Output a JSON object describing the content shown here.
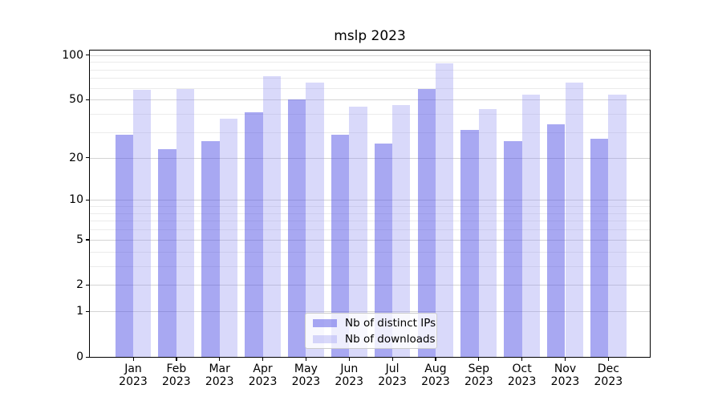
{
  "chart_data": {
    "type": "bar",
    "title": "mslp 2023",
    "year": "2023",
    "categories": [
      "Jan",
      "Feb",
      "Mar",
      "Apr",
      "May",
      "Jun",
      "Jul",
      "Aug",
      "Sep",
      "Oct",
      "Nov",
      "Dec"
    ],
    "series": [
      {
        "name": "Nb of distinct IPs",
        "fill": "rgba(81,81,229,0.5)",
        "values": [
          29,
          23,
          26,
          41,
          50,
          29,
          25,
          59,
          31,
          26,
          34,
          27
        ]
      },
      {
        "name": "Nb of downloads",
        "fill": "rgba(146,146,241,0.35)",
        "values": [
          58,
          59,
          37,
          72,
          65,
          45,
          46,
          88,
          43,
          54,
          65,
          54
        ]
      }
    ],
    "xlabel": "",
    "ylabel": "",
    "yscale": "log(1+v)",
    "ylim": [
      0,
      107
    ],
    "yticks": [
      100,
      50,
      20,
      10,
      5,
      2,
      1,
      0
    ],
    "minor_gridlines": [
      3,
      4,
      6,
      7,
      8,
      9,
      30,
      40,
      60,
      70,
      80,
      90
    ],
    "grid": "on",
    "legend_position": "lower center"
  },
  "colors": {
    "bar_distinct_ips": "rgba(81,81,229,0.5)",
    "bar_downloads": "rgba(146,146,241,0.35)",
    "major_grid": "#d4d4d4",
    "minor_grid": "#ebebeb",
    "spine": "#000000",
    "text": "#000000",
    "legend_border": "#cccccc"
  }
}
